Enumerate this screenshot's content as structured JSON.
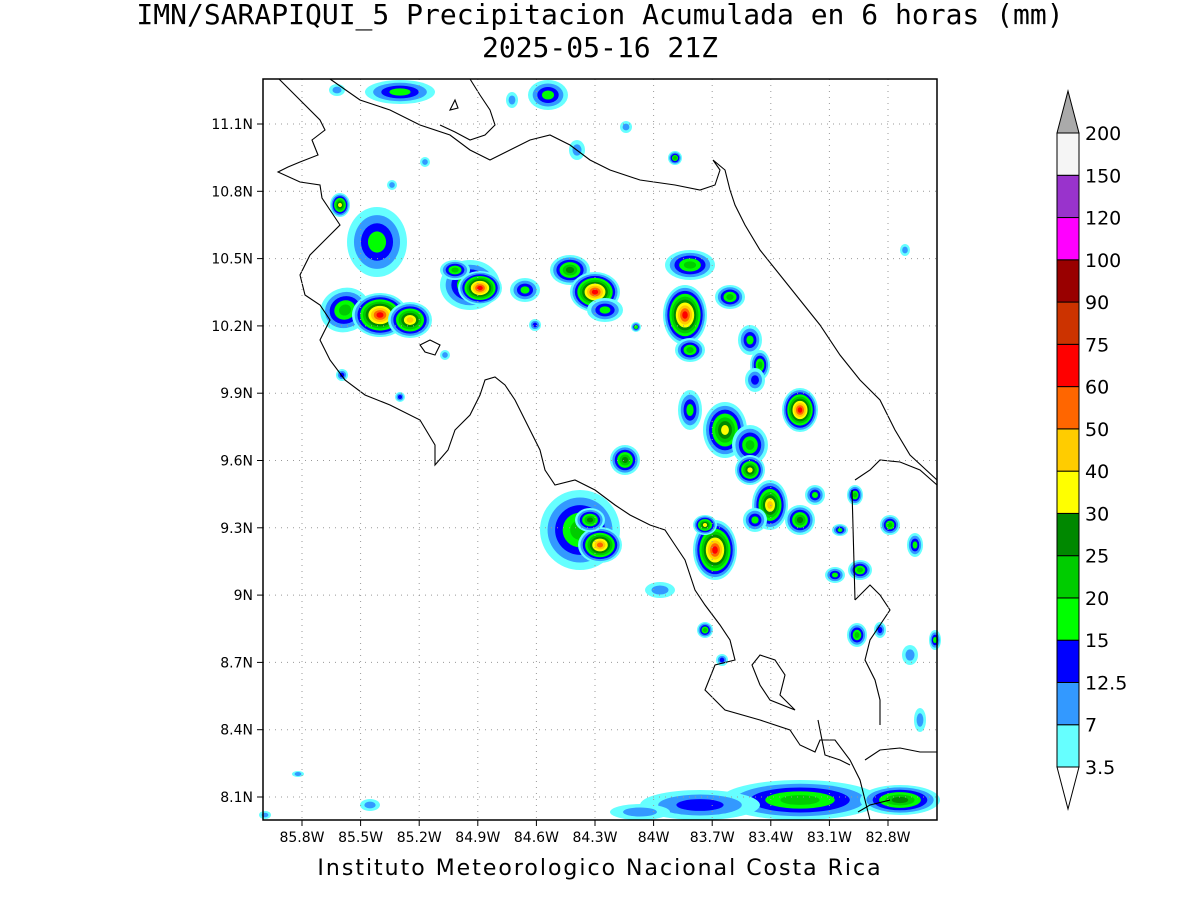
{
  "title": {
    "line1": "IMN/SARAPIQUI_5 Precipitacion Acumulada en 6 horas (mm)",
    "line2": "2025-05-16 21Z"
  },
  "footer": "Instituto Meteorologico Nacional Costa Rica",
  "map": {
    "lat_labels": [
      "11.1N",
      "10.8N",
      "10.5N",
      "10.2N",
      "9.9N",
      "9.6N",
      "9.3N",
      "9N",
      "8.7N",
      "8.4N",
      "8.1N"
    ],
    "lat_values": [
      11.1,
      10.8,
      10.5,
      10.2,
      9.9,
      9.6,
      9.3,
      9.0,
      8.7,
      8.4,
      8.1
    ],
    "lon_labels": [
      "85.8W",
      "85.5W",
      "85.2W",
      "84.9W",
      "84.6W",
      "84.3W",
      "84W",
      "83.7W",
      "83.4W",
      "83.1W",
      "82.8W"
    ],
    "lon_values": [
      -85.8,
      -85.5,
      -85.2,
      -84.9,
      -84.6,
      -84.3,
      -84.0,
      -83.7,
      -83.4,
      -83.1,
      -82.8
    ],
    "lon_range": [
      -86.05,
      -83.05
    ],
    "lat_range": [
      8.0,
      11.3
    ],
    "grid": true
  },
  "legend": {
    "levels": [
      "3.5",
      "7",
      "12.5",
      "15",
      "20",
      "25",
      "30",
      "40",
      "50",
      "60",
      "75",
      "90",
      "100",
      "120",
      "150",
      "200"
    ],
    "colors": [
      "#66ffff",
      "#3399ff",
      "#0000ff",
      "#00ff00",
      "#00cc00",
      "#008800",
      "#ffff00",
      "#ffcc00",
      "#ff6600",
      "#ff0000",
      "#cc3300",
      "#990000",
      "#ff00ff",
      "#9933cc",
      "#f5f5f5",
      "#aaaaaa"
    ]
  }
}
